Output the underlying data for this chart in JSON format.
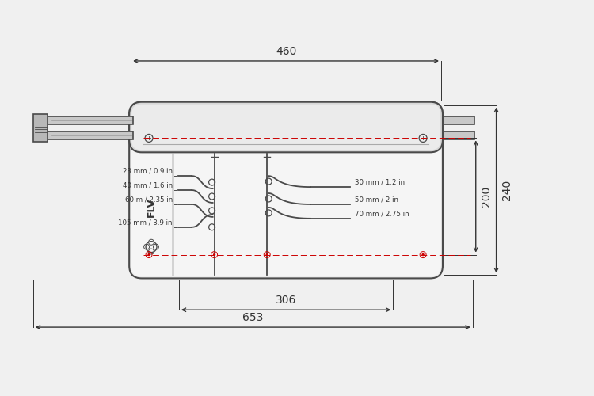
{
  "bg_color": "#f0f0f0",
  "line_color": "#4a4a4a",
  "dim_color": "#333333",
  "red_dash_color": "#cc0000",
  "dim_460": "460",
  "dim_306": "306",
  "dim_653": "653",
  "dim_200": "200",
  "dim_240": "240",
  "labels_left": [
    "23 mm / 0.9 in",
    "40 mm / 1.6 in",
    "60 m / 2.35 in",
    "105 mm / 3.9 in"
  ],
  "labels_right": [
    "30 mm / 1.2 in",
    "50 mm / 2 in",
    "70 mm / 2.75 in"
  ],
  "flv_text": "FLV",
  "body_facecolor": "#e8e8e8",
  "body_inner_facecolor": "#f5f5f5"
}
